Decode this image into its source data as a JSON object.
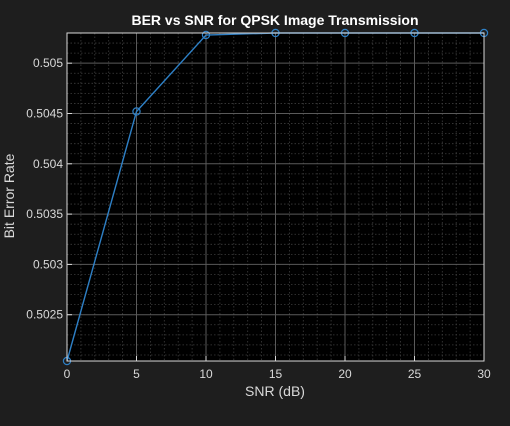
{
  "chart_data": {
    "type": "line",
    "title": "BER vs SNR for QPSK Image Transmission",
    "xlabel": "SNR (dB)",
    "ylabel": "Bit Error Rate",
    "x": [
      0,
      5,
      10,
      15,
      20,
      25,
      30
    ],
    "series": [
      {
        "values": [
          0.50204,
          0.50452,
          0.50528,
          0.5053,
          0.5053,
          0.5053,
          0.5053
        ]
      }
    ],
    "xlim": [
      0,
      30
    ],
    "ylim": [
      0.50204,
      0.5053
    ],
    "xticks": [
      0,
      5,
      10,
      15,
      20,
      25,
      30
    ],
    "xtick_labels": [
      "0",
      "5",
      "10",
      "15",
      "20",
      "25",
      "30"
    ],
    "yticks": [
      0.5025,
      0.503,
      0.5035,
      0.504,
      0.5045,
      0.505
    ],
    "ytick_labels": [
      "0.5025",
      "0.503",
      "0.5035",
      "0.504",
      "0.5045",
      "0.505"
    ],
    "grid": true,
    "minor_grid": true,
    "marker": "circle",
    "colors": {
      "background": "#1e1e1e",
      "axes_background": "#000000",
      "axis_box": "#d9d9d9",
      "major_grid": "#5a5a5a",
      "minor_grid": "#3c3c3c",
      "line": "#2e80c6",
      "text": "#d9d9d9",
      "title": "#ffffff"
    }
  }
}
